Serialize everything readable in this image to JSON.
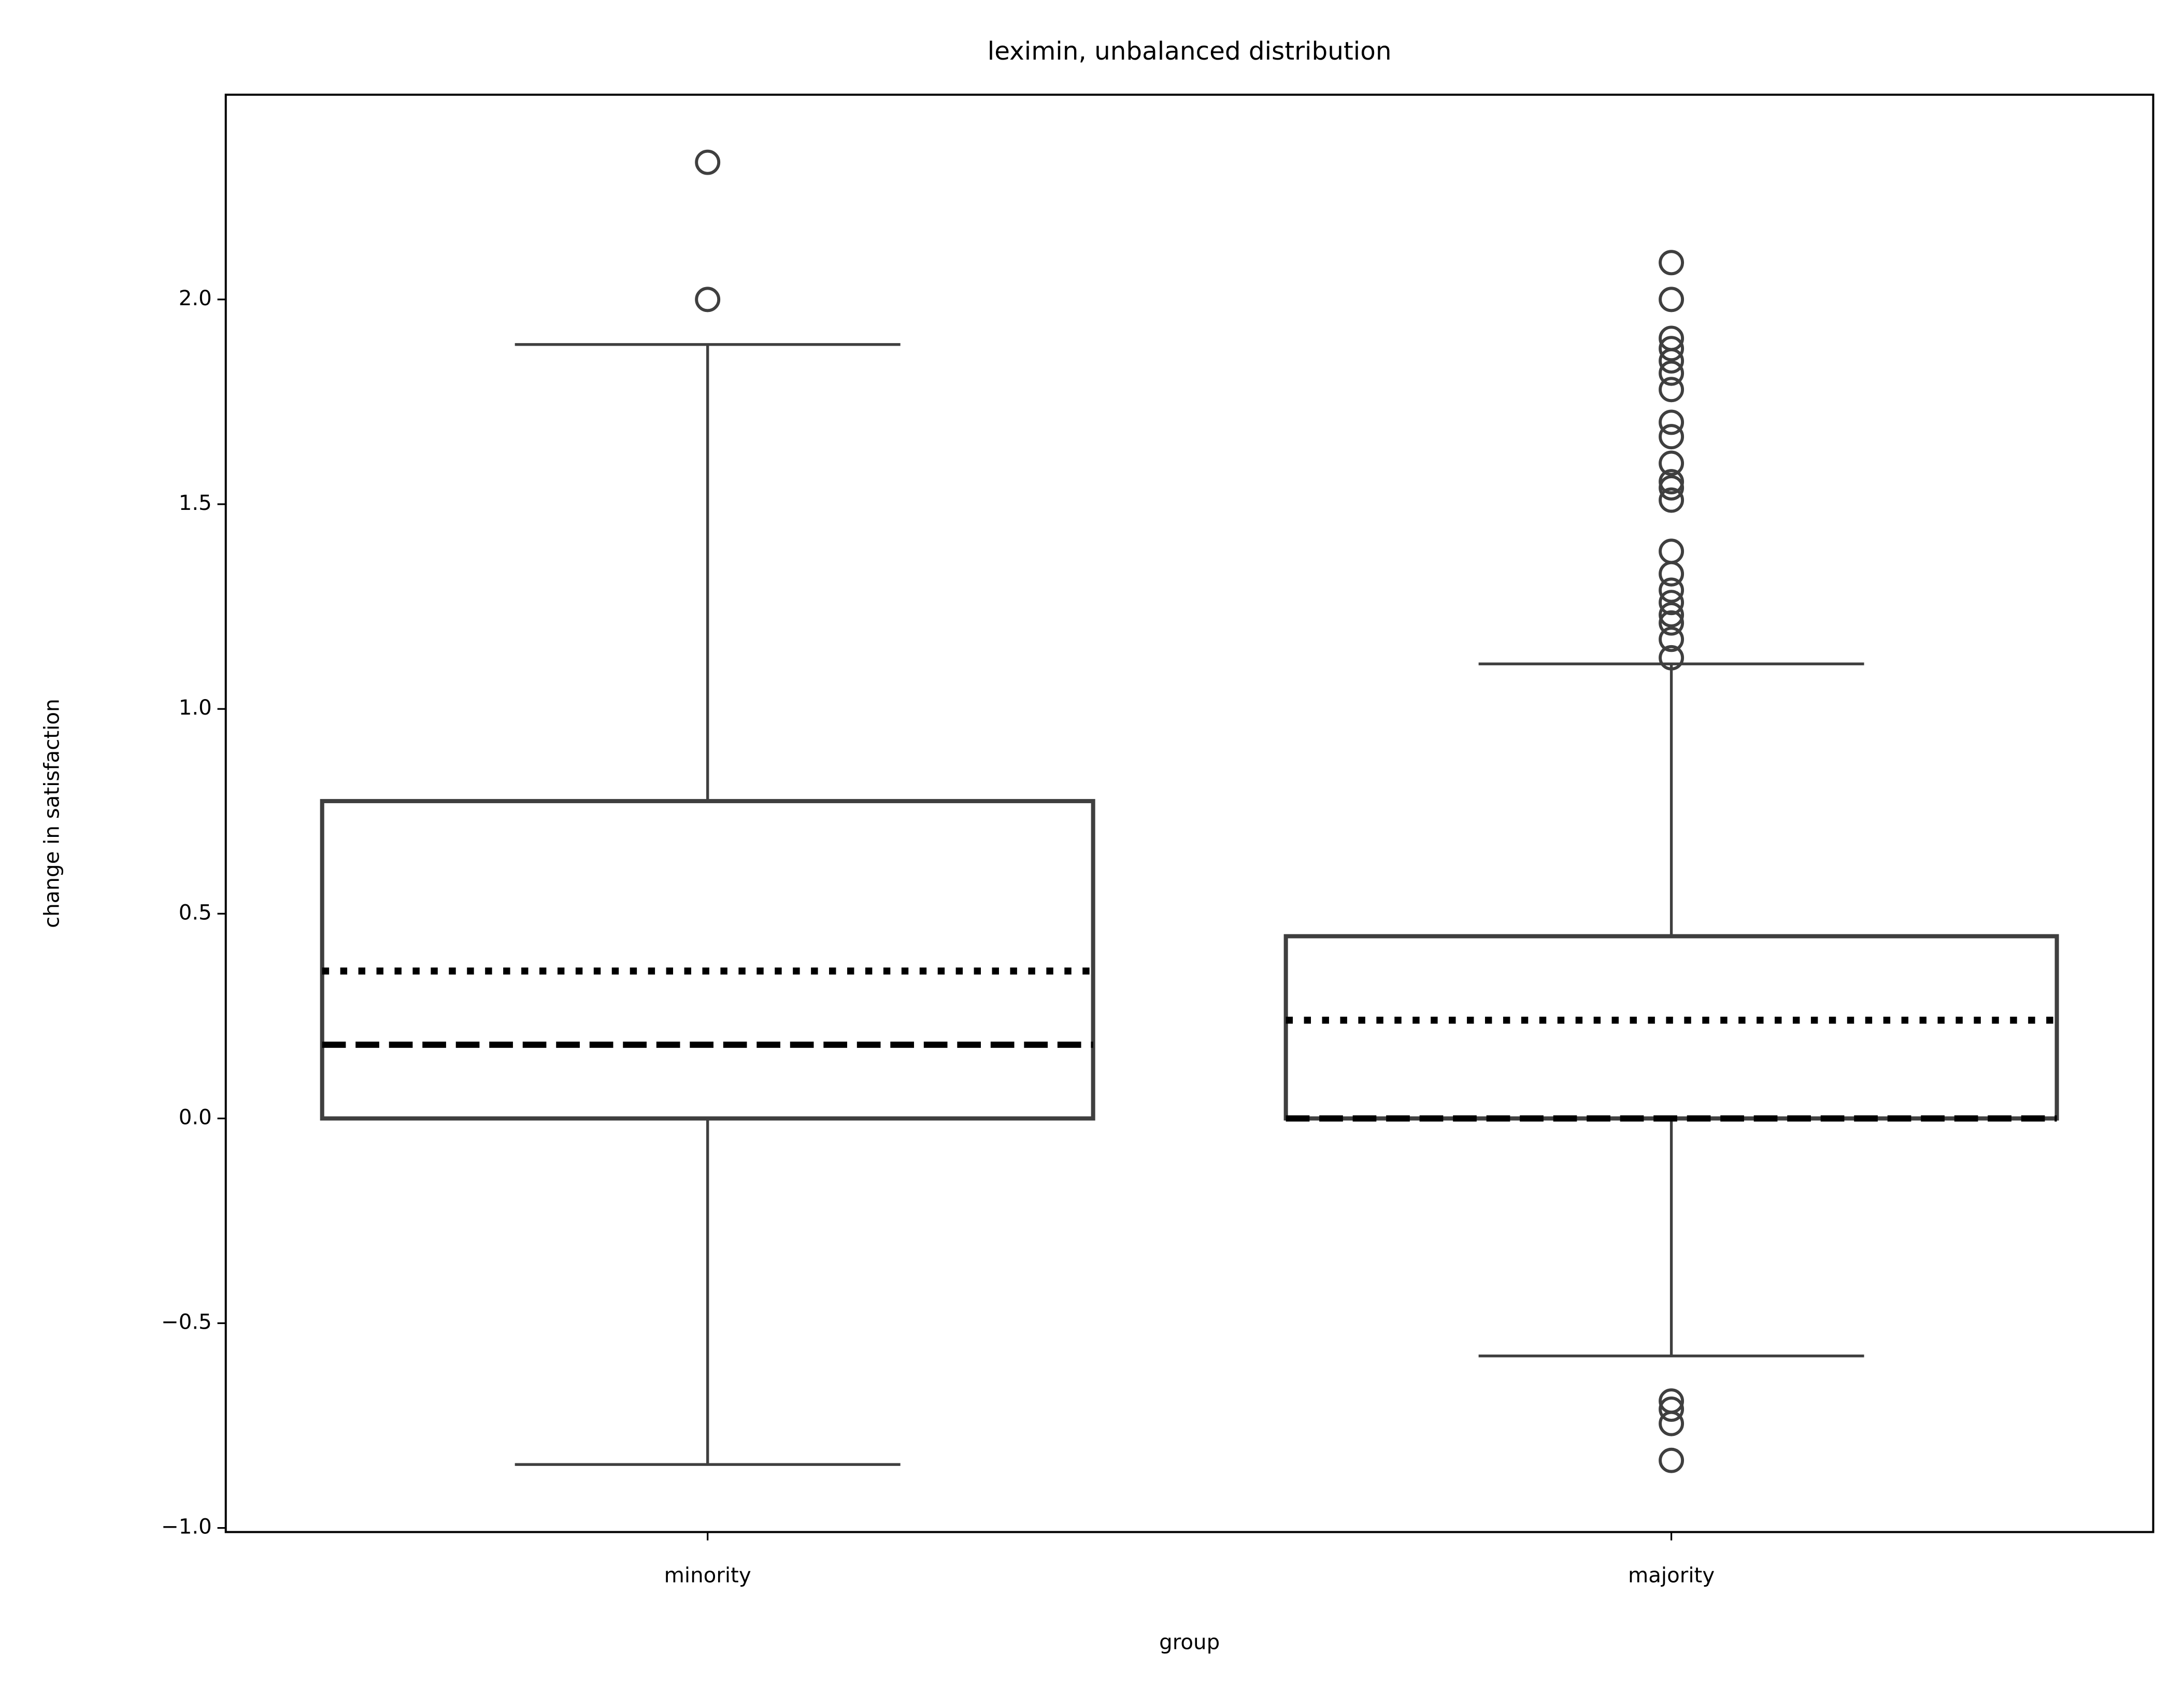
{
  "chart_data": {
    "type": "box",
    "title": "leximin, unbalanced distribution",
    "x_label": "group",
    "y_label": "change in satisfaction",
    "categories": [
      "minority",
      "majority"
    ],
    "stats": [
      {
        "whislo": -0.845,
        "q1": 0,
        "med": 0.18,
        "mean": 0.36,
        "q3": 0.775,
        "whishi": 1.89,
        "fliers": [
          2.0,
          2.335
        ]
      },
      {
        "whislo": -0.58,
        "q1": 0,
        "med": 0,
        "mean": 0.24,
        "q3": 0.445,
        "whishi": 1.11,
        "fliers": [
          2.09,
          2.0,
          1.905,
          1.88,
          1.85,
          1.82,
          1.78,
          1.7,
          1.665,
          1.6,
          1.555,
          1.54,
          1.51,
          1.385,
          1.33,
          1.29,
          1.26,
          1.23,
          1.21,
          1.17,
          1.125,
          -0.69,
          -0.71,
          -0.745,
          -0.835
        ]
      }
    ],
    "color": "#3f3f3f",
    "ylim": [
      -1.01,
      2.5
    ],
    "yticks": [
      {
        "value": -1.0,
        "label": "−1.0"
      },
      {
        "value": -0.5,
        "label": "−0.5"
      },
      {
        "value": 0.0,
        "label": "0.0"
      },
      {
        "value": 0.5,
        "label": "0.5"
      },
      {
        "value": 1.0,
        "label": "1.0"
      },
      {
        "value": 1.5,
        "label": "1.5"
      },
      {
        "value": 2.0,
        "label": "2.0"
      }
    ]
  }
}
